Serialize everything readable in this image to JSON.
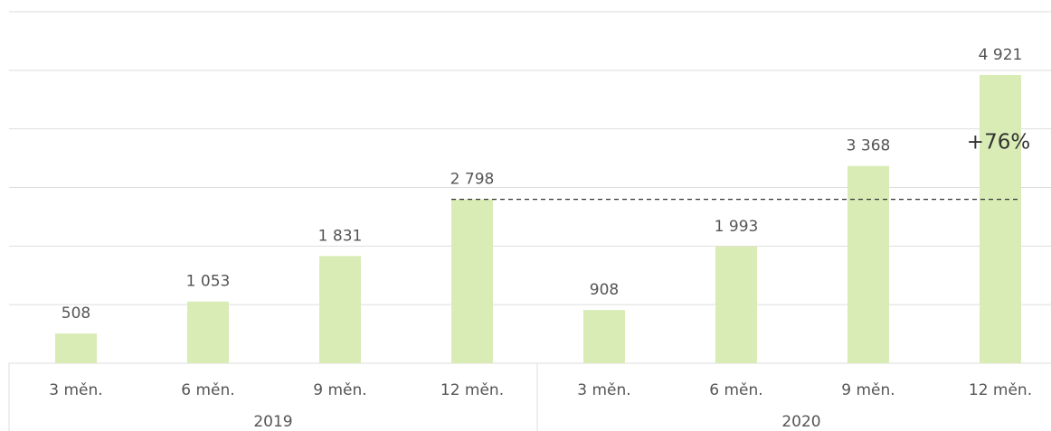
{
  "chart_data": {
    "type": "bar",
    "categories": [
      "3 měn.",
      "6 měn.",
      "9 měn.",
      "12 měn.",
      "3 měn.",
      "6 měn.",
      "9 měn.",
      "12 měn."
    ],
    "group_labels": [
      "2019",
      "2020"
    ],
    "values": [
      508,
      1053,
      1831,
      2798,
      908,
      1993,
      3368,
      4921
    ],
    "value_labels": [
      "508",
      "1 053",
      "1 831",
      "2 798",
      "908",
      "1 993",
      "3 368",
      "4 921"
    ],
    "color": "#d9ecb6",
    "ylim": [
      0,
      6000
    ],
    "yticks": [
      0,
      1000,
      2000,
      3000,
      4000,
      5000,
      6000
    ],
    "grid": true,
    "annotation": "+76%"
  }
}
